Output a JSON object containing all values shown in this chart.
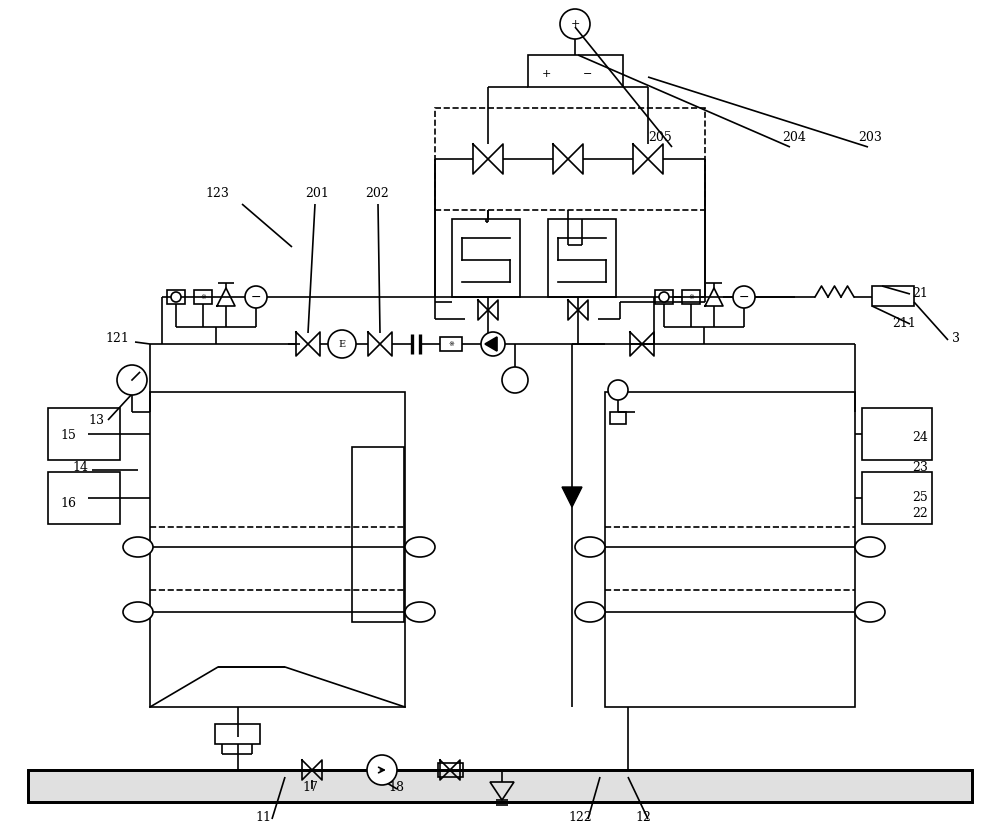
{
  "bg_color": "#ffffff",
  "lc": "#000000",
  "lw": 1.2,
  "fig_w": 10.0,
  "fig_h": 8.32
}
